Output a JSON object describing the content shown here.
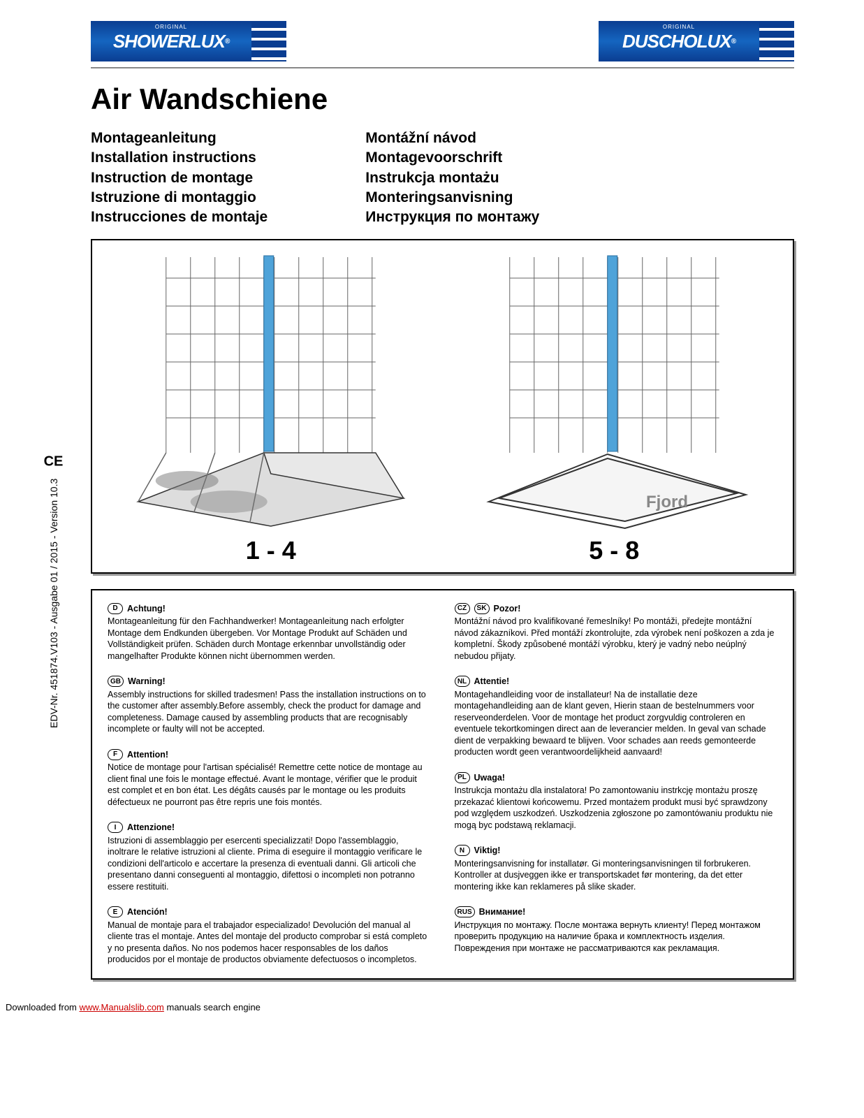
{
  "header": {
    "logo_left_original": "ORIGINAL",
    "logo_left_name": "SHOWERLUX",
    "logo_right_original": "ORIGINAL",
    "logo_right_name": "DUSCHOLUX"
  },
  "title": "Air Wandschiene",
  "subtitles_left": [
    "Montageanleitung",
    "Installation instructions",
    "Instruction de montage",
    "Istruzione di montaggio",
    "Instrucciones de montaje"
  ],
  "subtitles_right": [
    "Montážní návod",
    "Montagevoorschrift",
    "Instrukcja montażu",
    "Monteringsanvisning",
    "Инструкция по монтажу"
  ],
  "diagram": {
    "range_left": "1 - 4",
    "range_right": "5 - 8",
    "fjord_label": "Fjord",
    "rail_color": "#4fa3d9",
    "tile_line_color": "#666666",
    "floor_fill": "#e8e8e8"
  },
  "warnings_left": [
    {
      "codes": [
        "D"
      ],
      "heading": "Achtung!",
      "text": "Montageanleitung für den Fachhandwerker! Montageanleitung nach erfolgter Montage dem Endkunden übergeben. Vor Montage Produkt auf Schäden und Vollständigkeit prüfen. Schäden durch Montage erkennbar unvollständig oder mangelhafter Produkte können nicht übernommen werden."
    },
    {
      "codes": [
        "GB"
      ],
      "heading": "Warning!",
      "text": "Assembly instructions for skilled tradesmen! Pass the installation instructions on to the customer after assembly.Before assembly, check the product for damage and completeness. Damage caused by assembling products that are recognisably incomplete or faulty will not be accepted."
    },
    {
      "codes": [
        "F"
      ],
      "heading": "Attention!",
      "text": "Notice de montage pour l'artisan spécialisé! Remettre cette notice de montage au client final une fois le montage effectué. Avant le montage, vérifier que le produit est complet et en bon état. Les dégâts causés par le montage ou les produits défectueux ne pourront pas être repris une fois montés."
    },
    {
      "codes": [
        "I"
      ],
      "heading": "Attenzione!",
      "text": "Istruzioni di assemblaggio per esercenti specializzati! Dopo l'assemblaggio, inoltrare le relative istruzioni al cliente. Prima di eseguire il montaggio verificare le condizioni dell'articolo e accertare la presenza di eventuali danni. Gli articoli che presentano danni conseguenti al montaggio, difettosi o incompleti non potranno essere restituiti."
    },
    {
      "codes": [
        "E"
      ],
      "heading": "Atención!",
      "text": "Manual de montaje para el trabajador especializado! Devolución del manual al cliente tras el montaje. Antes del montaje del producto comprobar si está completo y no presenta daños. No nos podemos hacer responsables de los daños producidos por el montaje de productos obviamente defectuosos o incompletos."
    }
  ],
  "warnings_right": [
    {
      "codes": [
        "CZ",
        "SK"
      ],
      "heading": "Pozor!",
      "text": "Montážní návod pro kvalifikované řemeslníky! Po montáži, předejte montážní návod zákazníkovi. Před montáží zkontrolujte, zda výrobek není poškozen a zda je kompletní. Škody způsobené montáží výrobku, který je vadný nebo neúplný nebudou přijaty."
    },
    {
      "codes": [
        "NL"
      ],
      "heading": "Attentie!",
      "text": "Montagehandleiding voor de installateur! Na de installatie deze montagehandleiding aan de klant geven, Hierin staan de bestelnummers voor reserveonderdelen. Voor de montage het product zorgvuldig controleren en eventuele tekortkomingen direct aan de leverancier melden. In geval van schade dient de verpakking bewaard te blijven. Voor schades aan reeds gemonteerde producten wordt geen verantwoordelijkheid aanvaard!"
    },
    {
      "codes": [
        "PL"
      ],
      "heading": "Uwaga!",
      "text": "Instrukcja montażu dla instalatora! Po zamontowaniu instrkcję montażu proszę przekazać klientowi końcowemu. Przed montażem produkt musi być sprawdzony pod względem uszkodzeń. Uszkodzenia zgłoszone po zamontówaniu produktu nie mogą byc podstawą reklamacji."
    },
    {
      "codes": [
        "N"
      ],
      "heading": "Viktig!",
      "text": "Monteringsanvisning for installatør. Gi monteringsanvisningen til forbrukeren. Kontroller at dusjveggen ikke er transportskadet før montering, da det etter montering ikke kan reklameres på slike skader."
    },
    {
      "codes": [
        "RUS"
      ],
      "heading": "Внимание!",
      "text": "Инструкция по монтажу. После монтажа вернуть клиенту! Перед монтажом проверить продукцию на наличие брака и комплектность изделия. Повреждения при монтаже не рассматриваются как рекламация."
    }
  ],
  "side_text": "EDV-Nr. 451874.V103 - Ausgabe 01 / 2015 - Version 10.3",
  "footer": {
    "prefix": "Downloaded from ",
    "link_text": "www.Manualslib.com",
    "suffix": " manuals search engine"
  }
}
